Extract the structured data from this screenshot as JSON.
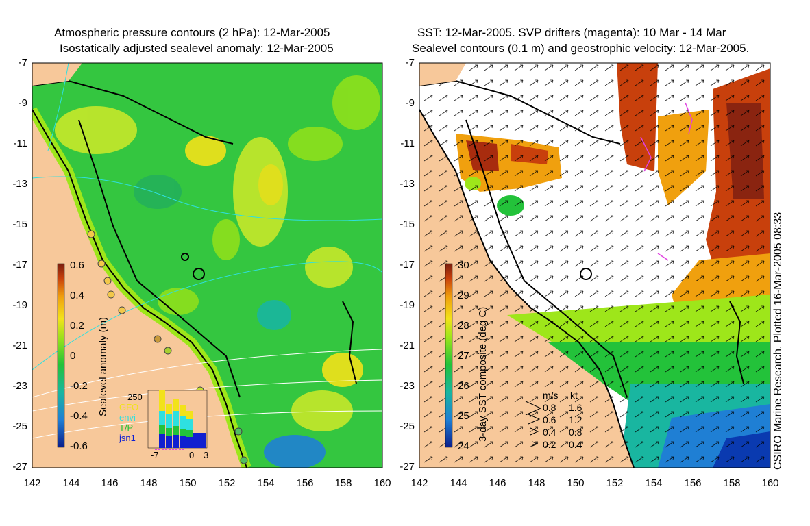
{
  "left_panel": {
    "title_line1": "Atmospheric pressure contours (2 hPa): 12-Mar-2005",
    "title_line2": "Isostatically adjusted sealevel anomaly: 12-Mar-2005",
    "y_ticks": [
      "-7",
      "-9",
      "-11",
      "-13",
      "-15",
      "-17",
      "-19",
      "-21",
      "-23",
      "-25",
      "-27"
    ],
    "x_ticks": [
      "142",
      "144",
      "146",
      "148",
      "150",
      "152",
      "154",
      "156",
      "158",
      "160"
    ],
    "colorbar_label": "Sealevel anomaly (m)",
    "colorbar_ticks": [
      "0.6",
      "0.4",
      "0.2",
      "0",
      "-0.2",
      "-0.4",
      "-0.6"
    ],
    "histogram": {
      "y_max_label": "250",
      "legend": [
        "GFO",
        "envi",
        "T/P",
        "jsn1"
      ],
      "x_labels": [
        "-7",
        "0",
        "3"
      ]
    }
  },
  "right_panel": {
    "title_line1": "SST: 12-Mar-2005. SVP drifters (magenta): 10 Mar - 14 Mar",
    "title_line2": "Sealevel contours (0.1 m) and geostrophic velocity: 12-Mar-2005.",
    "y_ticks": [
      "-7",
      "-9",
      "-11",
      "-13",
      "-15",
      "-17",
      "-19",
      "-21",
      "-23",
      "-25",
      "-27"
    ],
    "x_ticks": [
      "142",
      "144",
      "146",
      "148",
      "150",
      "152",
      "154",
      "156",
      "158",
      "160"
    ],
    "colorbar_label": "3-day SST composite (deg C)",
    "colorbar_ticks": [
      "30",
      "29",
      "28",
      "27",
      "26",
      "25",
      "24"
    ],
    "velocity_legend": {
      "headers": [
        "m/s",
        "kt"
      ],
      "rows": [
        [
          "0.8",
          "1.6"
        ],
        [
          "0.6",
          "1.2"
        ],
        [
          "0.4",
          "0.8"
        ],
        [
          "0.2",
          "0.4"
        ]
      ]
    },
    "credit": "CSIRO Marine Research. Plotted 16-Mar-2005 08:33"
  },
  "colors": {
    "land": "#f7c89a",
    "sla_ramp": [
      "#0a1e8c",
      "#1f7fd4",
      "#19b6a0",
      "#23c23a",
      "#8ee01c",
      "#f2e21a",
      "#f0a00e",
      "#c8400c",
      "#7a1e0e"
    ],
    "sst_ramp": [
      "#0a1e8c",
      "#1f7fd4",
      "#19b6a0",
      "#23c23a",
      "#9ee61a",
      "#f2e21a",
      "#f0a00e",
      "#c8400c",
      "#7a1e0e"
    ],
    "histogram_series": [
      "#f2e21a",
      "#2ee0e0",
      "#23c23a",
      "#1020d0"
    ]
  }
}
